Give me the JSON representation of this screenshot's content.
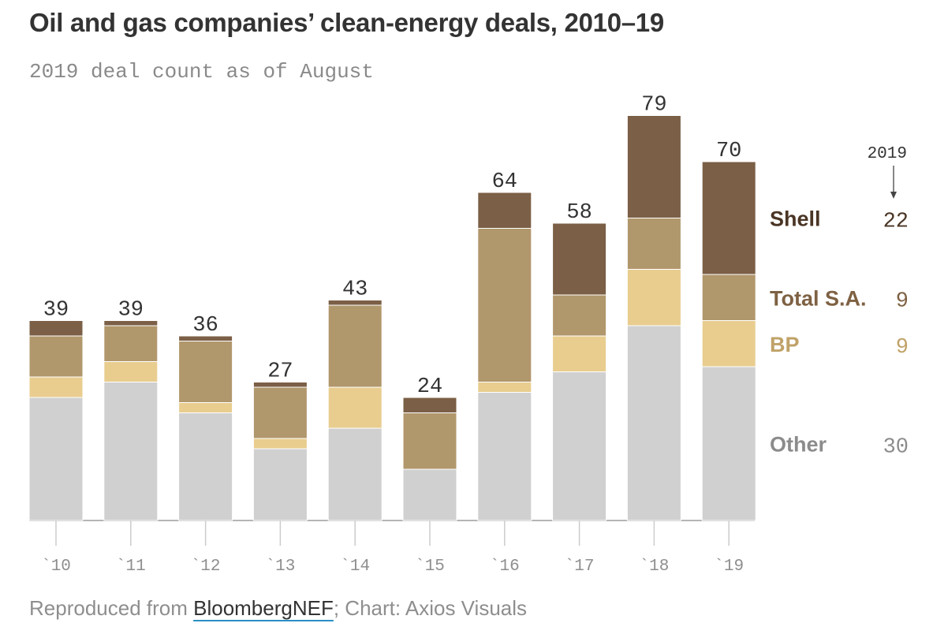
{
  "title": "Oil and gas companies’ clean-energy deals, 2010–19",
  "subtitle": "2019 deal count as of August",
  "footer": {
    "prefix": "Reproduced from ",
    "source": "BloombergNEF",
    "suffix": "; Chart: Axios Visuals"
  },
  "chart_data": {
    "type": "bar",
    "stacked": true,
    "categories": [
      "`10",
      "`11",
      "`12",
      "`13",
      "`14",
      "`15",
      "`16",
      "`17",
      "`18",
      "`19"
    ],
    "totals": [
      39,
      39,
      36,
      27,
      43,
      24,
      64,
      58,
      79,
      70
    ],
    "series": [
      {
        "name": "Other",
        "color": "#d0d0d0",
        "label_color": "#8c8c8c",
        "values": [
          24,
          27,
          21,
          14,
          18,
          10,
          25,
          29,
          38,
          30
        ]
      },
      {
        "name": "BP",
        "color": "#e8cd8f",
        "label_color": "#c0a268",
        "values": [
          4,
          4,
          2,
          2,
          8,
          0,
          2,
          7,
          11,
          9
        ]
      },
      {
        "name": "Total S.A.",
        "color": "#b1976c",
        "label_color": "#7e6143",
        "values": [
          8,
          7,
          12,
          10,
          16,
          11,
          30,
          8,
          10,
          9
        ]
      },
      {
        "name": "Shell",
        "color": "#7b5f46",
        "label_color": "#4a3525",
        "values": [
          3,
          1,
          1,
          1,
          1,
          3,
          7,
          14,
          20,
          22
        ]
      }
    ],
    "legend_header": "2019",
    "ylim": [
      0,
      80
    ],
    "grid": false,
    "legend_position": "right"
  }
}
